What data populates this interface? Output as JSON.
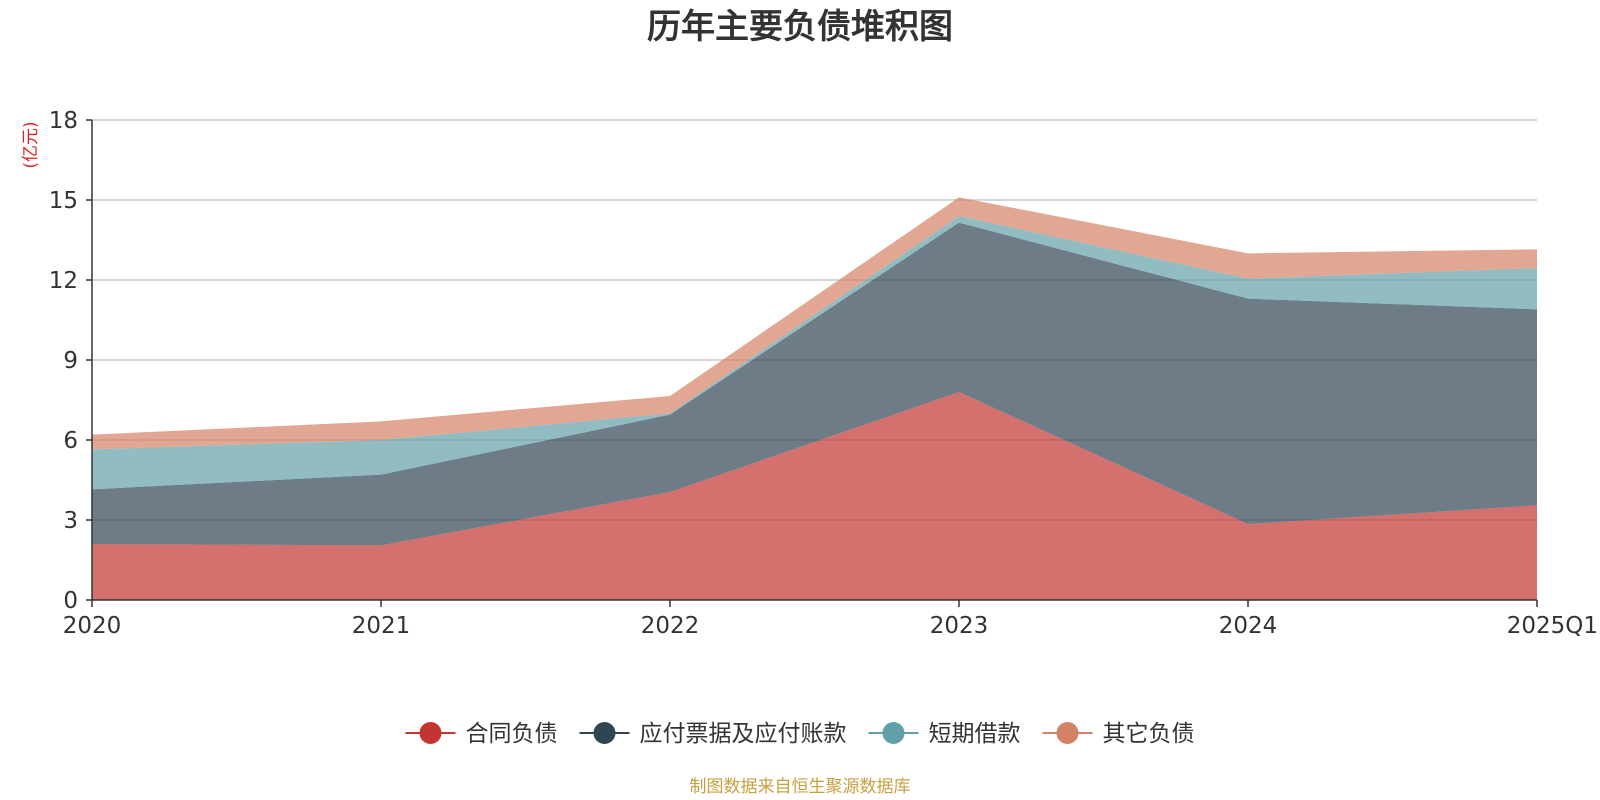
{
  "chart_data": {
    "type": "area",
    "stacked": true,
    "title": "历年主要负债堆积图",
    "unit_label": "(亿元)",
    "categories": [
      "2020",
      "2021",
      "2022",
      "2023",
      "2024",
      "2025Q1"
    ],
    "ylim": [
      0,
      18
    ],
    "yticks": [
      "0",
      "3",
      "6",
      "9",
      "12",
      "15",
      "18"
    ],
    "grid": true,
    "legend_position": "bottom",
    "series": [
      {
        "name": "合同负债",
        "color": "#c23531",
        "values": [
          2.1,
          2.05,
          4.05,
          7.8,
          2.85,
          3.55
        ]
      },
      {
        "name": "应付票据及应付账款",
        "color": "#2f4554",
        "values": [
          2.05,
          2.65,
          2.9,
          6.35,
          8.45,
          7.35
        ]
      },
      {
        "name": "短期借款",
        "color": "#61a0a8",
        "values": [
          1.5,
          1.3,
          0.05,
          0.25,
          0.75,
          1.55
        ]
      },
      {
        "name": "其它负债",
        "color": "#d48265",
        "values": [
          0.55,
          0.7,
          0.65,
          0.7,
          0.95,
          0.7
        ]
      }
    ],
    "source": "制图数据来自恒生聚源数据库"
  }
}
